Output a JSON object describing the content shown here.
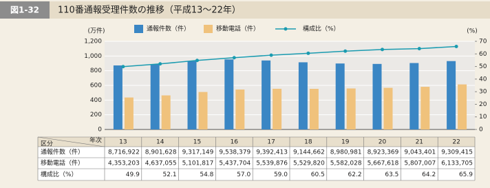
{
  "header": {
    "tag": "図1-32",
    "title": "110番通報受理件数の推移（平成13～22年）"
  },
  "chart_data": {
    "type": "bar",
    "y_unit": "(万件)",
    "y2_unit": "(%)",
    "categories": [
      "13",
      "14",
      "15",
      "16",
      "17",
      "18",
      "19",
      "20",
      "21",
      "22"
    ],
    "series": [
      {
        "name": "通報件数（件）",
        "color": "#3a86c4",
        "values": [
          871.6922,
          890.1628,
          931.7149,
          953.8379,
          939.2413,
          914.4662,
          898.0981,
          892.3369,
          904.3401,
          930.9415
        ],
        "value_labels": [
          "8,716,922",
          "8,901,628",
          "9,317,149",
          "9,538,379",
          "9,392,413",
          "9,144,662",
          "8,980,981",
          "8,923,369",
          "9,043,401",
          "9,309,415"
        ]
      },
      {
        "name": "移動電話（件）",
        "color": "#f0c27c",
        "values": [
          435.3203,
          463.7055,
          510.1817,
          543.7704,
          553.9876,
          552.982,
          558.2028,
          566.7618,
          580.7007,
          613.3705
        ],
        "value_labels": [
          "4,353,203",
          "4,637,055",
          "5,101,817",
          "5,437,704",
          "5,539,876",
          "5,529,820",
          "5,582,028",
          "5,667,618",
          "5,807,007",
          "6,133,705"
        ]
      },
      {
        "name": "構成比（%）",
        "color": "#1a9bb0",
        "axis": "y2",
        "type": "line",
        "values": [
          49.9,
          52.1,
          54.8,
          57.0,
          59.0,
          60.5,
          62.2,
          63.5,
          64.2,
          65.9
        ],
        "value_labels": [
          "49.9",
          "52.1",
          "54.8",
          "57.0",
          "59.0",
          "60.5",
          "62.2",
          "63.5",
          "64.2",
          "65.9"
        ]
      }
    ],
    "ylim": [
      0,
      1200
    ],
    "yticks": [
      0,
      200,
      400,
      600,
      800,
      {
        "value": 1000,
        "label": "1,000"
      },
      {
        "value": 1200,
        "label": "1,200"
      }
    ],
    "y2lim": [
      0,
      70
    ],
    "y2ticks": [
      0,
      10,
      20,
      30,
      40,
      50,
      60,
      70
    ],
    "grid": true,
    "table_header": {
      "row": "区分",
      "col": "年次"
    }
  }
}
